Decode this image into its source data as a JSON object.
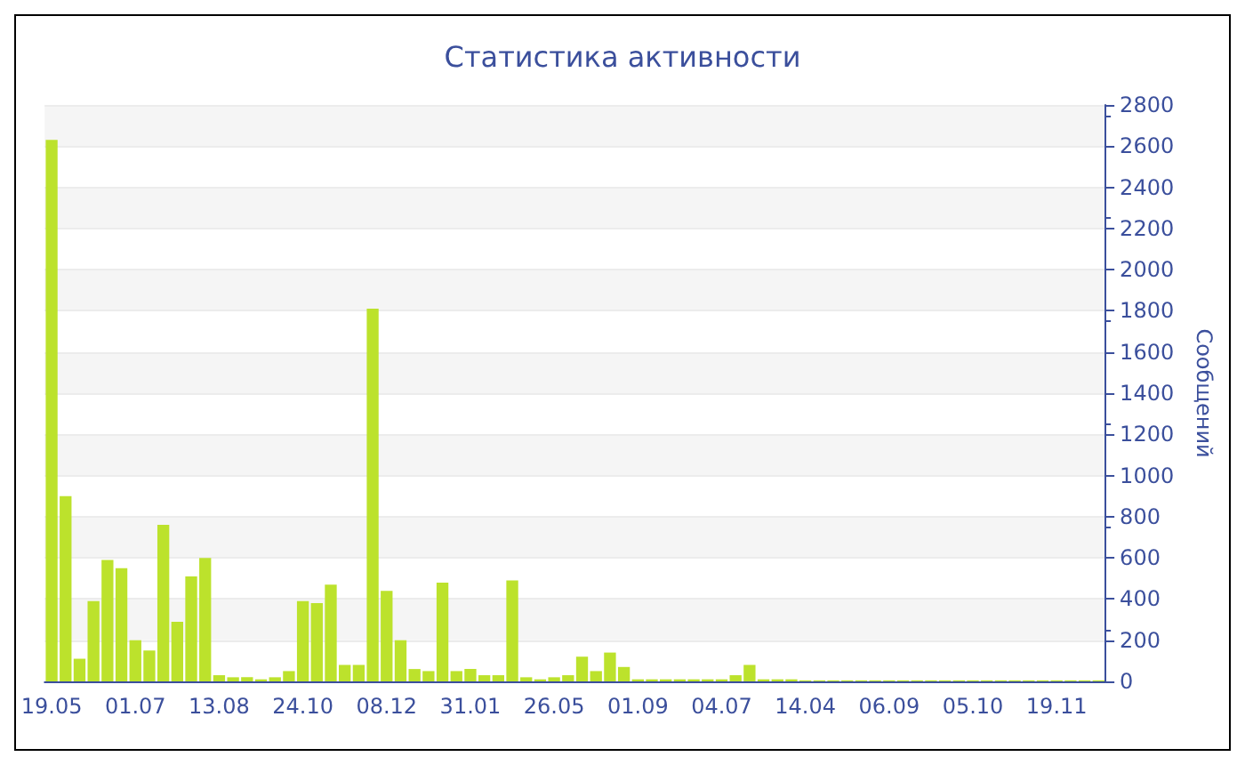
{
  "chart_data": {
    "type": "bar",
    "title": "Статистика активности",
    "ylabel": "Сообщений",
    "categories": [
      "19.05",
      null,
      null,
      null,
      null,
      null,
      "01.07",
      null,
      null,
      null,
      null,
      null,
      "13.08",
      null,
      null,
      null,
      null,
      null,
      "24.10",
      null,
      null,
      null,
      null,
      null,
      "08.12",
      null,
      null,
      null,
      null,
      null,
      "31.01",
      null,
      null,
      null,
      null,
      null,
      "26.05",
      null,
      null,
      null,
      null,
      null,
      "01.09",
      null,
      null,
      null,
      null,
      null,
      "04.07",
      null,
      null,
      null,
      null,
      null,
      "14.04",
      null,
      null,
      null,
      null,
      null,
      "06.09",
      null,
      null,
      null,
      null,
      null,
      "05.10",
      null,
      null,
      null,
      null,
      null,
      "19.11",
      null,
      null,
      null
    ],
    "series": [
      {
        "color": "#bce22c",
        "values": [
          2630,
          900,
          110,
          390,
          590,
          550,
          200,
          150,
          760,
          290,
          510,
          600,
          30,
          20,
          20,
          10,
          20,
          50,
          390,
          380,
          470,
          80,
          80,
          1810,
          440,
          200,
          60,
          50,
          480,
          50,
          60,
          30,
          30,
          490,
          20,
          10,
          20,
          30,
          120,
          50,
          140,
          70,
          10,
          10,
          10,
          10,
          10,
          10,
          10,
          30,
          80,
          10,
          10,
          10,
          5,
          5,
          5,
          5,
          5,
          5,
          5,
          5,
          5,
          5,
          5,
          5,
          5,
          5,
          5,
          5,
          5,
          5,
          5,
          5,
          5,
          5
        ]
      }
    ],
    "ylim": [
      0,
      2800
    ],
    "yticks": [
      0,
      200,
      400,
      600,
      800,
      1000,
      1200,
      1400,
      1600,
      1800,
      2000,
      2200,
      2400,
      2600,
      2800
    ],
    "grid": "y"
  }
}
